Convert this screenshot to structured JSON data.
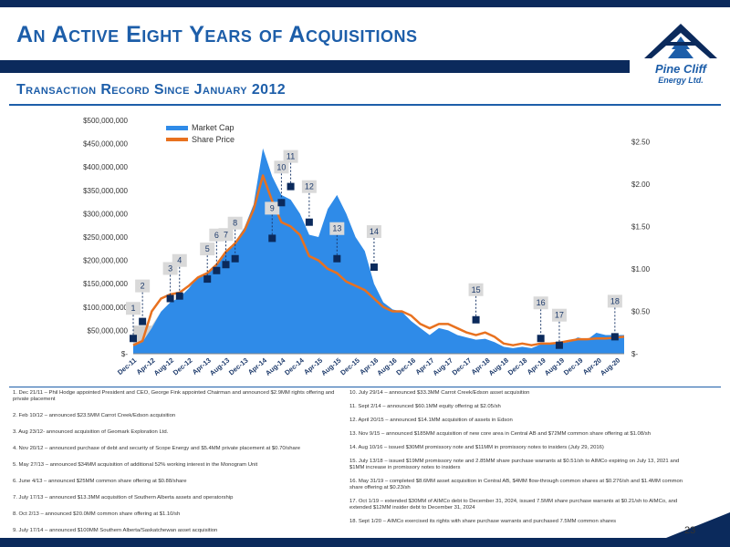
{
  "header": {
    "title": "An Active Eight Years of Acquisitions",
    "subtitle": "Transaction Record Since January 2012"
  },
  "logo": {
    "line1": "Pine Cliff",
    "line2": "Energy Ltd."
  },
  "page_number": "23",
  "colors": {
    "navy": "#0b2a5c",
    "accent": "#1d5ea9",
    "market_cap_fill": "#2f8be8",
    "share_price_line": "#e8711f",
    "grey_area": "#d0d0d0"
  },
  "chart_data": {
    "type": "area",
    "x_tick_labels": [
      "Dec-11",
      "Apr-12",
      "Aug-12",
      "Dec-12",
      "Apr-13",
      "Aug-13",
      "Dec-13",
      "Apr-14",
      "Aug-14",
      "Dec-14",
      "Apr-15",
      "Aug-15",
      "Dec-15",
      "Apr-16",
      "Aug-16",
      "Dec-16",
      "Apr-17",
      "Aug-17",
      "Dec-17",
      "Apr-18",
      "Aug-18",
      "Dec-18",
      "Apr-19",
      "Aug-19",
      "Dec-19",
      "Apr-20",
      "Aug-20"
    ],
    "y_left_ticks": [
      "$-",
      "$50,000,000",
      "$100,000,000",
      "$150,000,000",
      "$200,000,000",
      "$250,000,000",
      "$300,000,000",
      "$350,000,000",
      "$400,000,000",
      "$450,000,000",
      "$500,000,000"
    ],
    "y_right_ticks": [
      "$-",
      "$0.50",
      "$1.00",
      "$1.50",
      "$2.00",
      "$2.50"
    ],
    "ylim_left": [
      0,
      500000000
    ],
    "ylim_right": [
      0,
      2.75
    ],
    "legend": {
      "position": "top-left",
      "items": [
        "Market Cap",
        "Share Price"
      ]
    },
    "series": [
      {
        "name": "Market Cap",
        "axis": "left",
        "values": [
          18000000,
          25000000,
          55000000,
          90000000,
          110000000,
          120000000,
          140000000,
          165000000,
          175000000,
          190000000,
          215000000,
          240000000,
          270000000,
          320000000,
          440000000,
          380000000,
          340000000,
          330000000,
          300000000,
          255000000,
          250000000,
          310000000,
          340000000,
          300000000,
          250000000,
          220000000,
          150000000,
          110000000,
          95000000,
          90000000,
          70000000,
          55000000,
          40000000,
          55000000,
          50000000,
          40000000,
          35000000,
          30000000,
          32000000,
          25000000,
          15000000,
          12000000,
          15000000,
          12000000,
          20000000,
          20000000,
          22000000,
          25000000,
          35000000,
          30000000,
          45000000,
          40000000,
          40000000,
          40000000
        ]
      },
      {
        "name": "Share Price",
        "axis": "right",
        "values": [
          0.1,
          0.15,
          0.5,
          0.65,
          0.7,
          0.72,
          0.8,
          0.9,
          0.95,
          1.05,
          1.2,
          1.3,
          1.45,
          1.7,
          2.1,
          1.8,
          1.55,
          1.5,
          1.4,
          1.15,
          1.1,
          1.0,
          0.95,
          0.85,
          0.8,
          0.75,
          0.65,
          0.55,
          0.5,
          0.5,
          0.45,
          0.35,
          0.3,
          0.35,
          0.35,
          0.3,
          0.25,
          0.22,
          0.25,
          0.2,
          0.12,
          0.1,
          0.12,
          0.1,
          0.12,
          0.12,
          0.13,
          0.15,
          0.17,
          0.17,
          0.18,
          0.18,
          0.19,
          0.2
        ]
      }
    ],
    "annotations": [
      {
        "label": "1",
        "x_index": 0,
        "price": 0.18
      },
      {
        "label": "2",
        "x_index": 1,
        "price": 0.38
      },
      {
        "label": "3",
        "x_index": 4,
        "price": 0.65
      },
      {
        "label": "4",
        "x_index": 5,
        "price": 0.68
      },
      {
        "label": "5",
        "x_index": 8,
        "price": 0.88
      },
      {
        "label": "6",
        "x_index": 9,
        "price": 0.98
      },
      {
        "label": "7",
        "x_index": 10,
        "price": 1.05
      },
      {
        "label": "8",
        "x_index": 11,
        "price": 1.12
      },
      {
        "label": "9",
        "x_index": 15,
        "price": 1.36
      },
      {
        "label": "10",
        "x_index": 16,
        "price": 1.78
      },
      {
        "label": "11",
        "x_index": 17,
        "price": 1.97
      },
      {
        "label": "12",
        "x_index": 19,
        "price": 1.55
      },
      {
        "label": "13",
        "x_index": 22,
        "price": 1.12
      },
      {
        "label": "14",
        "x_index": 26,
        "price": 1.02
      },
      {
        "label": "15",
        "x_index": 37,
        "price": 0.4
      },
      {
        "label": "16",
        "x_index": 44,
        "price": 0.18
      },
      {
        "label": "17",
        "x_index": 46,
        "price": 0.1
      },
      {
        "label": "18",
        "x_index": 52,
        "price": 0.2
      }
    ]
  },
  "notes_left": [
    "1. Dec 21/11 – Phil Hodge appointed President and CEO, George Fink appointed Chairman and announced $2.9MM rights offering and private placement",
    "2. Feb 10/12 – announced $23.5MM Carrot Creek/Edson acquisition",
    "3. Aug 23/12- announced acquisition of Geomark Exploration Ltd.",
    "4. Nov 20/12 – announced purchase of debt and security of Scope Energy and $5.4MM private placement at $0.70/share",
    "5. May 27/13 – announced $34MM acquisition of additional 52% working interest in the Monogram Unit",
    "6. June 4/13 – announced $25MM common share offering at $0.88/share",
    "7. July 17/13 – announced $13.3MM acquisition of Southern Alberta assets and operatorship",
    "8. Oct 2/13 – announced $20.0MM common share offering at $1.10/sh",
    "9. July 17/14 – announced $100MM Southern Alberta/Saskatchewan asset acquisition"
  ],
  "notes_right": [
    "10. July 29/14 – announced $33.3MM Carrot Creek/Edson asset acquisition",
    "11. Sept 2/14 – announced $60.1MM equity offering at $2.05/sh",
    "12. April 20/15 – announced $14.1MM acquisition of assets in Edson",
    "13. Nov 9/15 – announced $185MM acquisition of new core area in Central AB and $72MM common share offering at $1.08/sh",
    "14. Aug 10/16 – issued $30MM promissory note and $11MM in promissory notes to insiders (July 29, 2016)",
    "15. July 13/18 – issued $19MM promissory note and 2.85MM share purchase warrants at $0.51/sh to AIMCo expiring on July 13, 2021 and $1MM increase in promissory notes to insiders",
    "16. May 31/19 – completed $8.6MM asset acquisition in Central AB, $4MM flow-through common shares at $0.276/sh and $1.4MM common share offering at $0.23/sh",
    "17. Oct 1/19 – extended $30MM of AIMCo debt to December 31, 2024, issued 7.5MM share purchase warrants at $0.21/sh to AIMCo, and extended $12MM insider debt to December 31, 2024",
    "18. Sept 1/20 – AIMCo exercised its rights with share purchase warrants and purchased 7.5MM common shares"
  ]
}
